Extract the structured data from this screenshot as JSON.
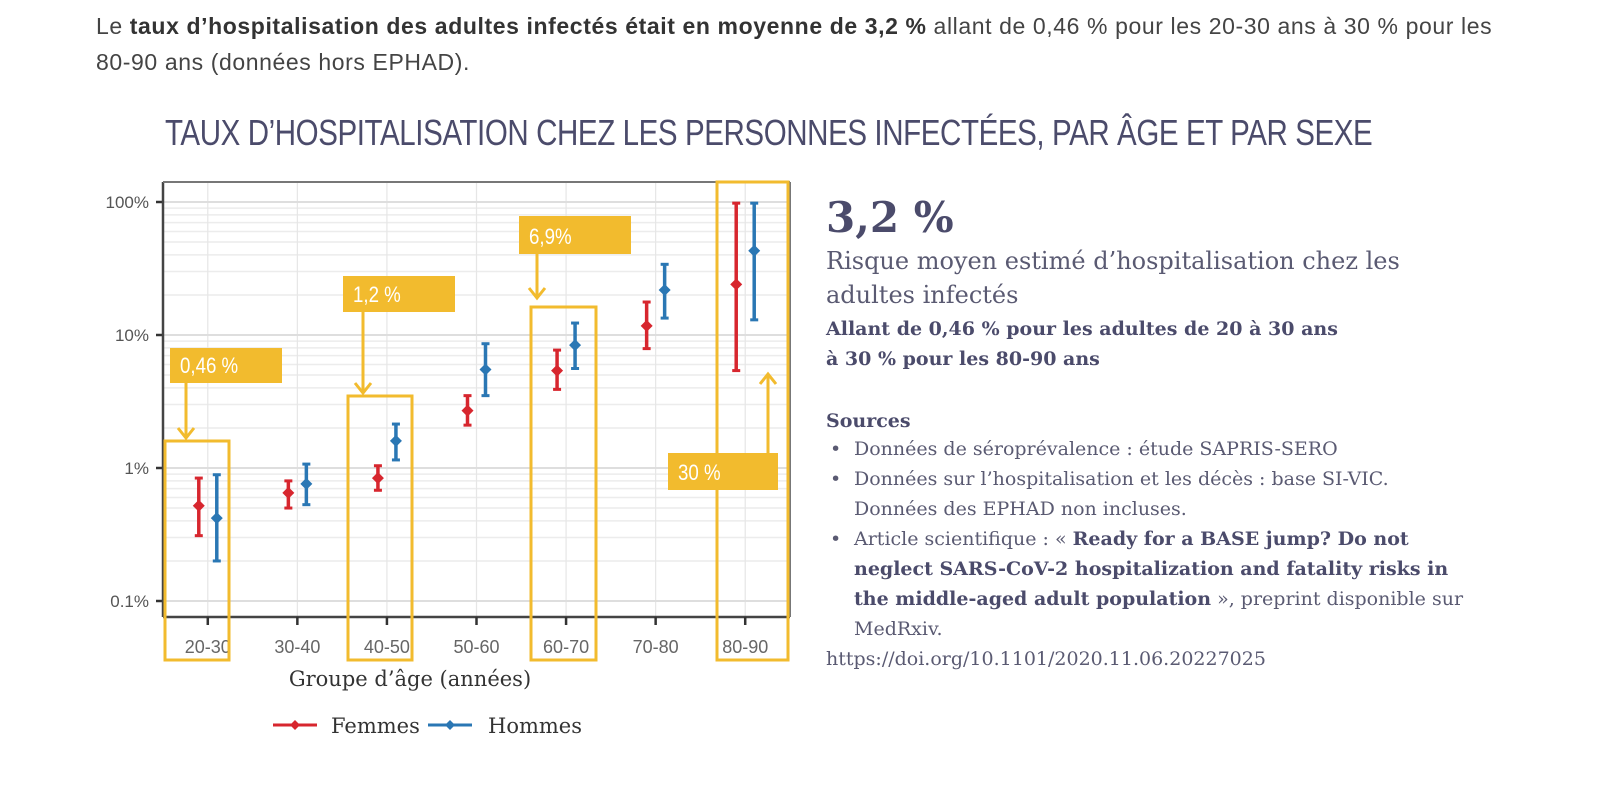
{
  "intro": {
    "prefix": "Le ",
    "bold": "taux d’hospitalisation des adultes infectés était en moyenne de 3,2 %",
    "suffix": " allant de 0,46 % pour les 20-30 ans à 30 % pour les 80-90 ans (données hors EPHAD)."
  },
  "side": {
    "big_value": "3,2 %",
    "description": "Risque moyen estimé d’hospitalisation chez les adultes infectés",
    "range_line1": "Allant de 0,46 % pour les adultes de 20 à 30 ans",
    "range_line2": "à 30 % pour les 80-90 ans",
    "sources_title": "Sources",
    "sources": [
      {
        "text": "Données de séroprévalence : étude SAPRIS-SERO"
      },
      {
        "text": "Données sur l’hospitalisation et les décès : base SI-VIC. Données des EPHAD non incluses."
      },
      {
        "prefix": "Article scientifique : « ",
        "bold": "Ready for a BASE jump? Do not neglect SARS-CoV-2 hospitalization and fatality risks in the middle-aged adult population",
        "suffix": " », preprint disponible sur MedRxiv."
      }
    ],
    "doi": "https://doi.org/10.1101/2020.11.06.20227025"
  },
  "colors": {
    "femmes": "#d7262e",
    "hommes": "#2a77b4",
    "highlight": "#f2bb2e",
    "title": "#4b4b6b"
  },
  "chart_data": {
    "type": "scatter",
    "title": "TAUX D’HOSPITALISATION CHEZ LES PERSONNES INFECTÉES, PAR ÂGE ET PAR SEXE",
    "xlabel": "Groupe d’âge (années)",
    "ylabel": "",
    "yscale": "log",
    "ylim": [
      0.08,
      130
    ],
    "yticks": [
      0.1,
      1,
      10,
      100
    ],
    "ytick_labels": [
      "0.1%",
      "1%",
      "10%",
      "100%"
    ],
    "grid": true,
    "legend": "bottom",
    "categories": [
      "20-30",
      "30-40",
      "40-50",
      "50-60",
      "60-70",
      "70-80",
      "80-90"
    ],
    "series": [
      {
        "name": "Femmes",
        "values": [
          0.52,
          0.65,
          0.84,
          2.7,
          5.4,
          11.7,
          24
        ],
        "lower": [
          0.31,
          0.5,
          0.68,
          2.1,
          3.9,
          7.9,
          5.4
        ],
        "upper": [
          0.84,
          0.8,
          1.04,
          3.5,
          7.7,
          17.7,
          98
        ]
      },
      {
        "name": "Hommes",
        "values": [
          0.42,
          0.76,
          1.6,
          5.5,
          8.4,
          21.8,
          43
        ],
        "lower": [
          0.2,
          0.53,
          1.15,
          3.5,
          5.6,
          13.4,
          13
        ],
        "upper": [
          0.89,
          1.07,
          2.14,
          8.6,
          12.3,
          34,
          98
        ]
      }
    ],
    "annotations": [
      {
        "label": "0,46 %",
        "category": "20-30",
        "direction": "down"
      },
      {
        "label": "1,2 %",
        "category": "40-50",
        "direction": "down"
      },
      {
        "label": "6,9%",
        "category": "60-70",
        "direction": "down"
      },
      {
        "label": "30 %",
        "category": "80-90",
        "direction": "up"
      }
    ]
  }
}
